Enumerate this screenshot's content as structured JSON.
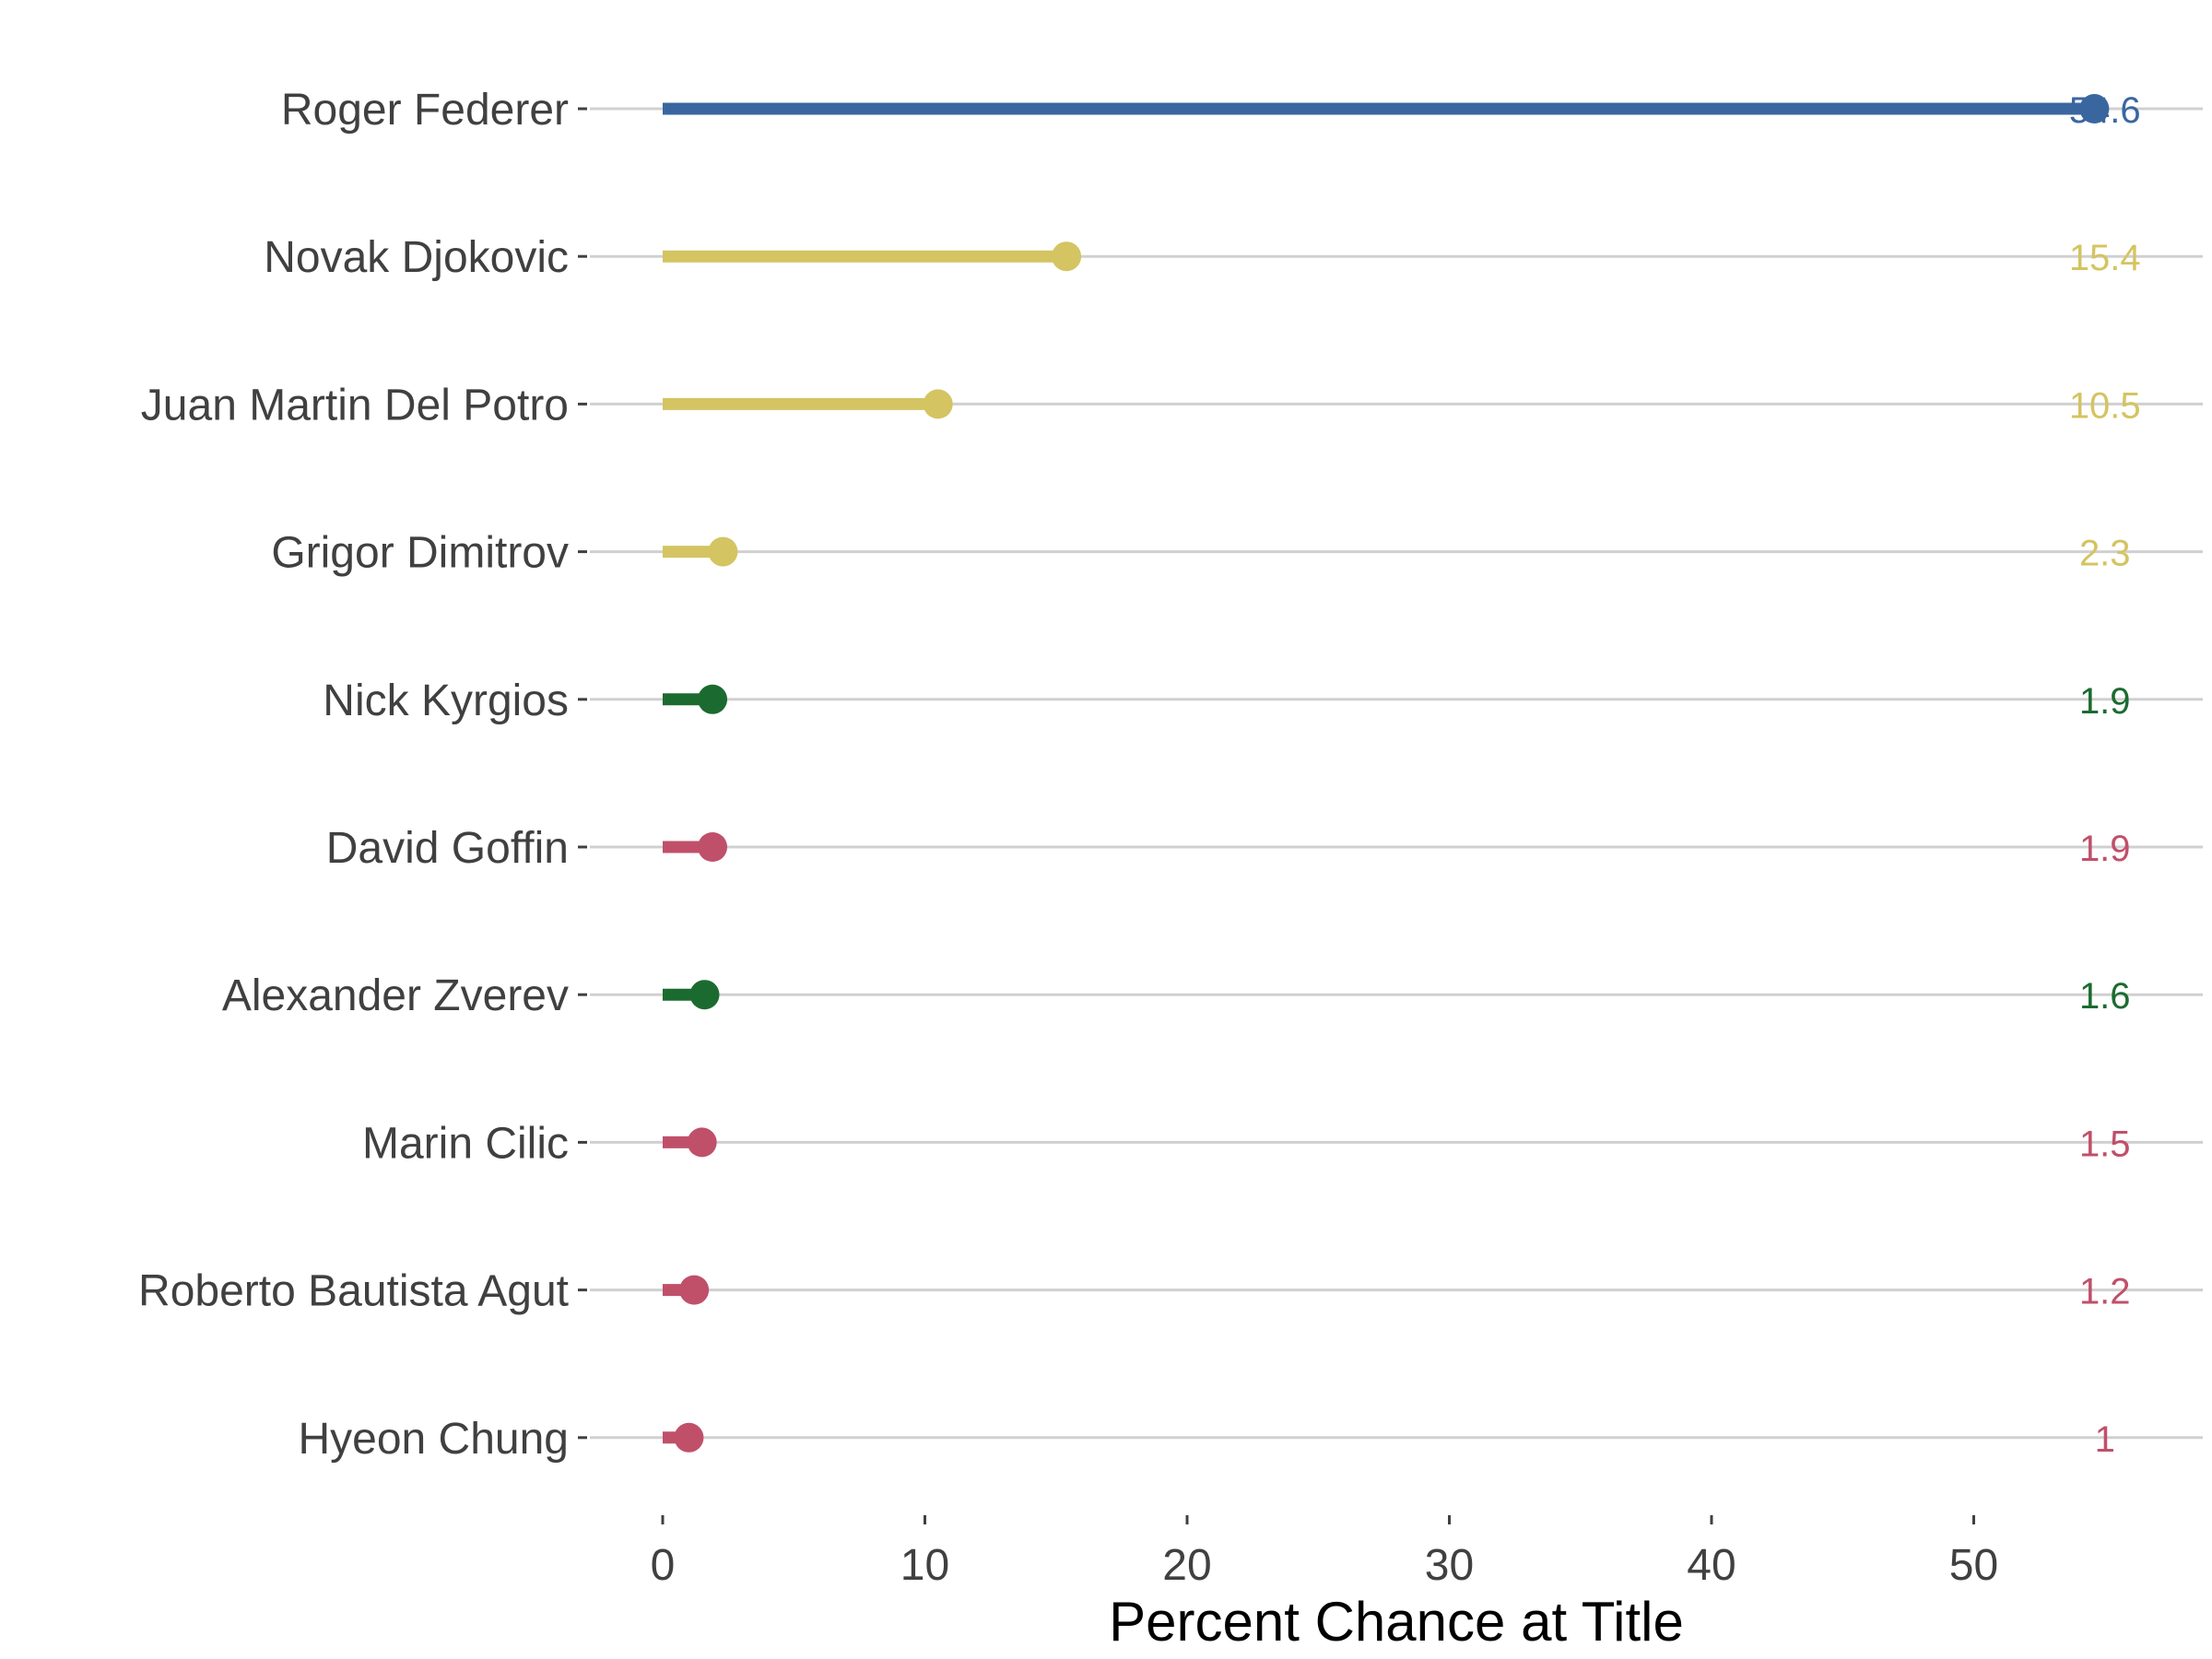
{
  "chart_data": {
    "type": "lollipop",
    "orientation": "horizontal",
    "xlabel": "Percent Chance at Title",
    "ylabel": "",
    "xlim": [
      0,
      58
    ],
    "xticks": [
      0,
      10,
      20,
      30,
      40,
      50
    ],
    "grid": "horizontal",
    "legend": "none",
    "value_label_x": 55,
    "categories": [
      "Hyeon Chung",
      "Roberto Bautista Agut",
      "Marin Cilic",
      "Alexander Zverev",
      "David Goffin",
      "Nick Kyrgios",
      "Grigor Dimitrov",
      "Juan Martin Del Potro",
      "Novak Djokovic",
      "Roger Federer"
    ],
    "values": [
      1,
      1.2,
      1.5,
      1.6,
      1.9,
      1.9,
      2.3,
      10.5,
      15.4,
      54.6
    ],
    "value_labels": [
      "1",
      "1.2",
      "1.5",
      "1.6",
      "1.9",
      "1.9",
      "2.3",
      "10.5",
      "15.4",
      "54.6"
    ],
    "colors": [
      "#c0506a",
      "#c0506a",
      "#c0506a",
      "#1b6b30",
      "#c0506a",
      "#1b6b30",
      "#d4c462",
      "#d4c462",
      "#d4c462",
      "#3a66a0"
    ]
  }
}
